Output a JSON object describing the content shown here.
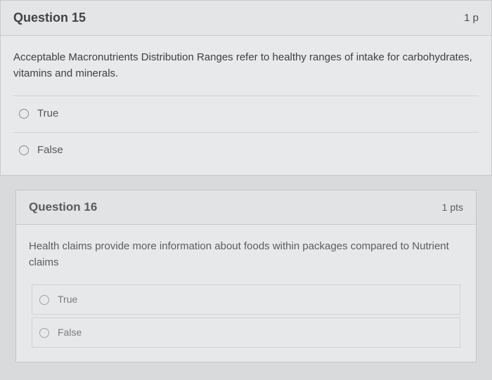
{
  "q15": {
    "title": "Question 15",
    "points": "1 p",
    "text": "Acceptable Macronutrients Distribution Ranges refer to healthy ranges of intake for carbohydrates, vitamins and minerals.",
    "options": [
      "True",
      "False"
    ]
  },
  "q16": {
    "title": "Question 16",
    "points": "1 pts",
    "text": "Health claims provide more information about foods within packages compared to Nutrient claims",
    "options": [
      "True",
      "False"
    ]
  }
}
